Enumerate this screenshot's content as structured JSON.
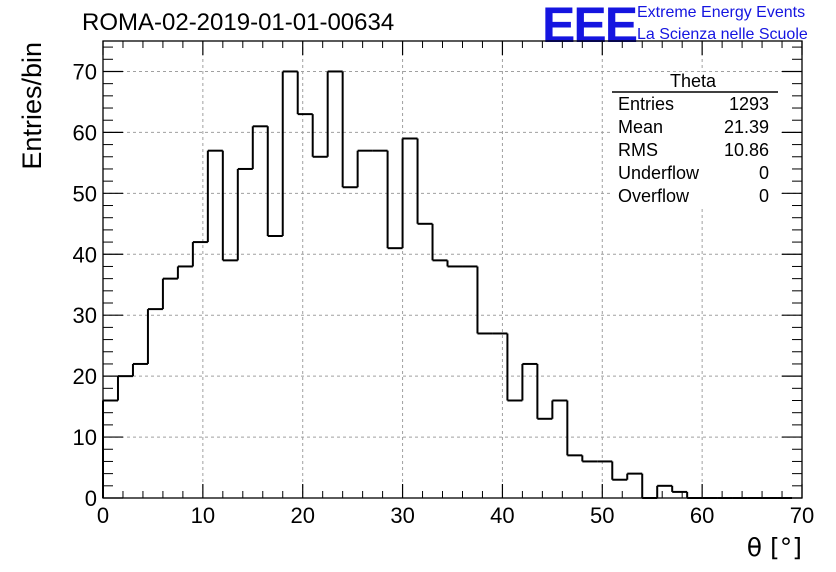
{
  "header": {
    "run_title": "ROMA-02-2019-01-01-00634",
    "logo_letters": "EEE",
    "logo_line1": "Extreme Energy Events",
    "logo_line2": "La Scienza nelle Scuole"
  },
  "stats": {
    "name": "Theta",
    "rows": [
      {
        "label": "Entries",
        "value": "1293"
      },
      {
        "label": "Mean",
        "value": "21.39"
      },
      {
        "label": "RMS",
        "value": "10.86"
      },
      {
        "label": "Underflow",
        "value": "0"
      },
      {
        "label": "Overflow",
        "value": "0"
      }
    ]
  },
  "colors": {
    "line": "#000000",
    "grid": "#a0a0a0",
    "logo": "#1515e0"
  },
  "chart_data": {
    "type": "histogram",
    "xlabel": "θ [°]",
    "ylabel": "Entries/bin",
    "xlim": [
      0,
      70
    ],
    "ylim": [
      0,
      75
    ],
    "grid": true,
    "bin_width": 1.5,
    "x_ticks": [
      0,
      10,
      20,
      30,
      40,
      50,
      60,
      70
    ],
    "y_ticks": [
      0,
      10,
      20,
      30,
      40,
      50,
      60,
      70
    ],
    "values": [
      16,
      20,
      22,
      31,
      36,
      38,
      42,
      57,
      39,
      54,
      61,
      43,
      70,
      63,
      56,
      70,
      51,
      57,
      57,
      41,
      59,
      45,
      39,
      38,
      38,
      27,
      27,
      16,
      22,
      13,
      16,
      7,
      6,
      6,
      3,
      4,
      0,
      2,
      1,
      0,
      0,
      0,
      0,
      0,
      0,
      0
    ]
  }
}
